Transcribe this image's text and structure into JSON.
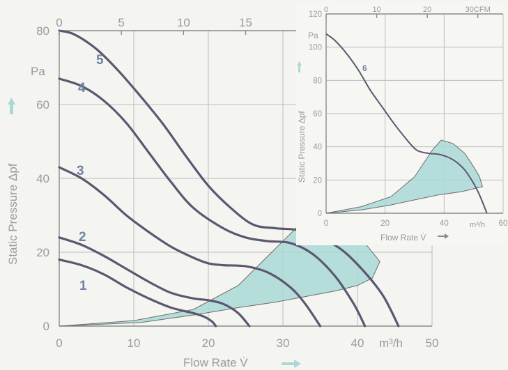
{
  "chart_data": [
    {
      "type": "line",
      "title": "",
      "xlabel": "Flow Rate  V̇",
      "ylabel": "Static Pressure  Δpf",
      "ylabel_unit": "Pa",
      "x_unit": "m³/h",
      "xlim": [
        0,
        50
      ],
      "ylim": [
        0,
        80
      ],
      "x_ticks": [
        "0",
        "10",
        "20",
        "30",
        "40",
        "50"
      ],
      "y_ticks": [
        "0",
        "20",
        "40",
        "60",
        "80"
      ],
      "top_axis": {
        "unit": "CFM",
        "lim": [
          0,
          30
        ],
        "ticks": [
          "0",
          "5",
          "10",
          "15"
        ]
      },
      "grid": true,
      "series": [
        {
          "name": "1",
          "x": [
            0,
            3,
            6,
            9,
            12,
            15,
            18,
            19.5,
            20.5,
            21
          ],
          "y": [
            18,
            16.5,
            14,
            10.5,
            7.5,
            5,
            3.5,
            2.5,
            1.2,
            0
          ]
        },
        {
          "name": "2",
          "x": [
            0,
            3,
            6,
            9,
            12,
            15,
            18,
            20,
            22,
            24,
            25.5
          ],
          "y": [
            24,
            22,
            19,
            15.5,
            12,
            9,
            7.5,
            7,
            6,
            3.5,
            0
          ]
        },
        {
          "name": "3",
          "x": [
            0,
            3,
            6,
            9,
            12,
            15,
            18,
            20,
            22,
            25,
            28,
            31,
            33,
            35
          ],
          "y": [
            43,
            40,
            35.5,
            30,
            25.5,
            21.5,
            18.5,
            17,
            16.5,
            16.2,
            14.5,
            10.5,
            6,
            0
          ]
        },
        {
          "name": "4",
          "x": [
            0,
            3,
            6,
            9,
            12,
            15,
            18,
            22,
            25,
            28,
            31,
            34,
            37,
            39.5,
            41
          ],
          "y": [
            67,
            65,
            61,
            55,
            47,
            39,
            32,
            26.5,
            24,
            23,
            22.5,
            19.5,
            13.5,
            6,
            0
          ]
        },
        {
          "name": "5",
          "x": [
            0,
            2,
            5,
            8,
            11,
            14,
            17,
            20,
            23,
            26,
            29,
            32,
            35,
            38,
            41,
            43.5,
            45.5
          ],
          "y": [
            80,
            79,
            75,
            69,
            62,
            54.5,
            46,
            38,
            32,
            27.5,
            26.5,
            26,
            24,
            20.5,
            14.5,
            8,
            0
          ]
        }
      ],
      "operating_region": {
        "x": [
          0,
          10,
          18,
          24,
          29,
          33,
          36,
          39,
          41,
          43,
          42,
          40,
          37,
          33,
          29,
          24,
          18,
          11,
          0
        ],
        "y": [
          0,
          1.5,
          4.5,
          11,
          21,
          29,
          28.5,
          26,
          22.5,
          17.5,
          13,
          11,
          9.5,
          8,
          6.5,
          5,
          3,
          1,
          0
        ]
      }
    },
    {
      "type": "line",
      "title": "",
      "xlabel": "Flow Rate  V̇",
      "ylabel": "Static Pressure  Δpf",
      "ylabel_unit": "Pa",
      "x_unit": "m³/h",
      "xlim": [
        0,
        60
      ],
      "ylim": [
        0,
        120
      ],
      "x_ticks": [
        "0",
        "20",
        "40",
        "60"
      ],
      "y_ticks": [
        "0",
        "20",
        "40",
        "60",
        "80",
        "100",
        "120"
      ],
      "top_axis": {
        "unit": "CFM",
        "lim": [
          0,
          35
        ],
        "ticks": [
          "0",
          "10",
          "20",
          "30CFM"
        ]
      },
      "grid": true,
      "series": [
        {
          "name": "6",
          "x": [
            0,
            3,
            7,
            11,
            15,
            19,
            23,
            27,
            30,
            32,
            35,
            38,
            41,
            44,
            47,
            50,
            52,
            54.5
          ],
          "y": [
            108,
            104,
            96,
            86,
            74,
            64,
            54,
            45,
            39,
            37,
            36,
            35.5,
            34,
            31,
            26,
            18,
            11,
            0
          ]
        }
      ],
      "operating_region": {
        "x": [
          0,
          12,
          22,
          30,
          36,
          39,
          43,
          47,
          50,
          52,
          53,
          46,
          38,
          30,
          22,
          12,
          0
        ],
        "y": [
          0,
          4,
          10,
          22,
          38,
          44,
          42,
          36,
          28,
          22,
          16,
          13,
          11,
          8,
          5,
          2,
          0
        ]
      }
    }
  ]
}
